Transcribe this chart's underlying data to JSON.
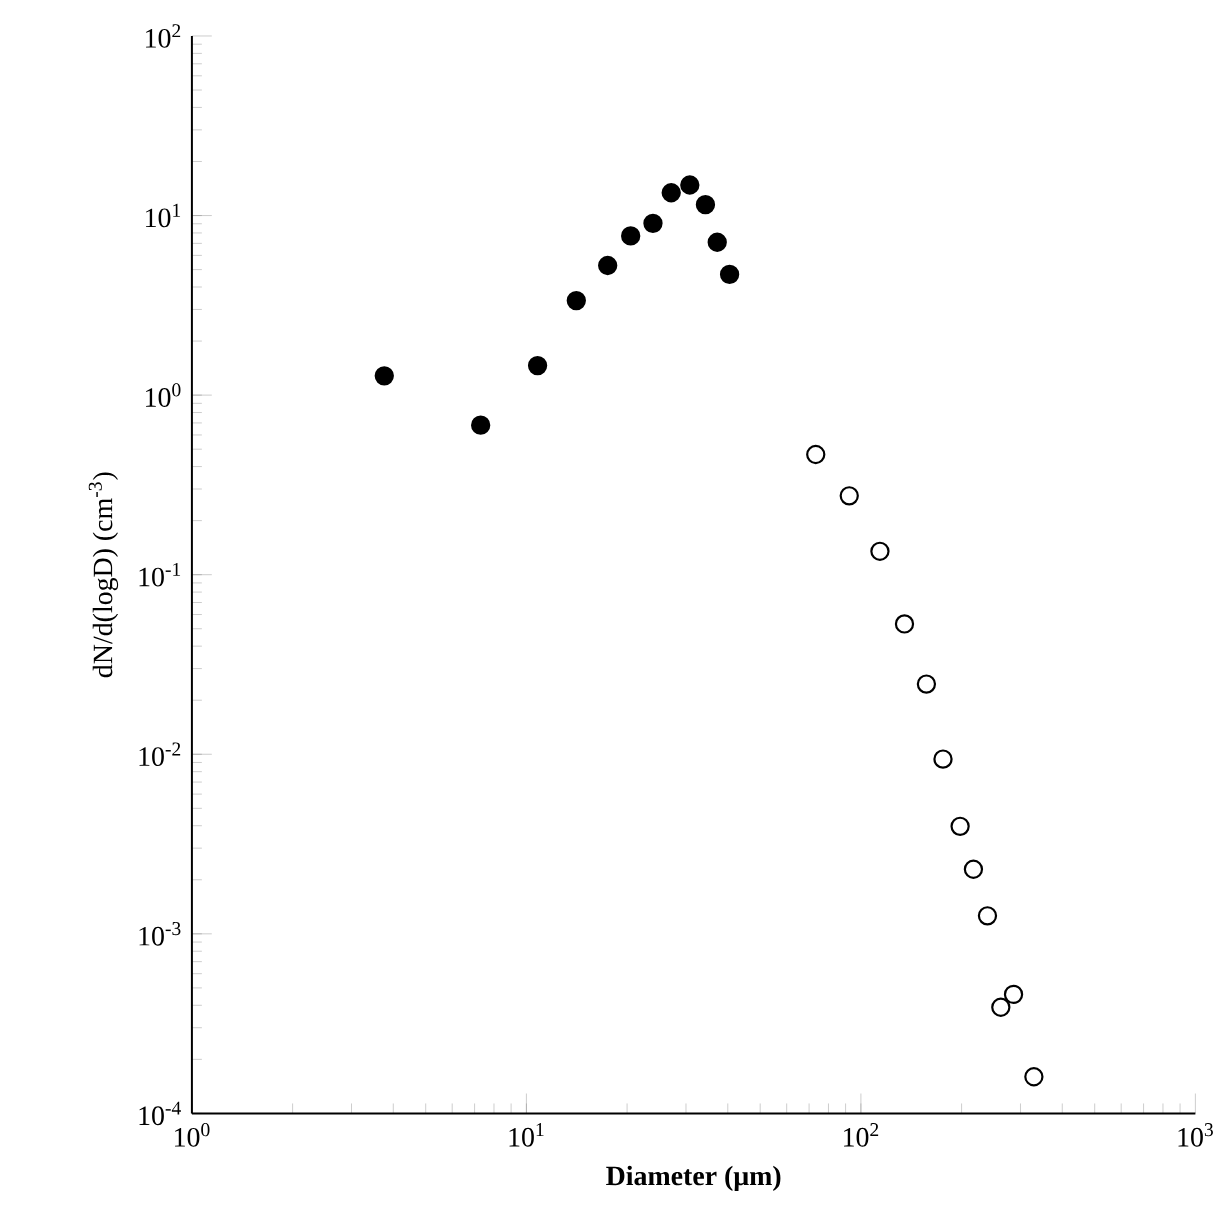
{
  "chart_data": {
    "type": "scatter",
    "xlabel": "Diameter (μm)",
    "ylabel": "dN/d(logD) (cm$^{-3}$)",
    "log": "xy",
    "grid": false,
    "xlim": [
      1,
      1000
    ],
    "ylim": [
      0.0001,
      100
    ],
    "xticks": [
      {
        "value": 1,
        "label": "10$^{0}$"
      },
      {
        "value": 10,
        "label": "10$^{1}$"
      },
      {
        "value": 100,
        "label": "10$^{2}$"
      },
      {
        "value": 1000,
        "label": "10$^{3}$"
      }
    ],
    "yticks": [
      {
        "value": 0.0001,
        "label": "10$^{-4}$"
      },
      {
        "value": 0.001,
        "label": "10$^{-3}$"
      },
      {
        "value": 0.01,
        "label": "10$^{-2}$"
      },
      {
        "value": 0.1,
        "label": "10$^{-1}$"
      },
      {
        "value": 1,
        "label": "10$^{0}$"
      },
      {
        "value": 10,
        "label": "10$^{1}$"
      },
      {
        "value": 100,
        "label": "10$^{2}$"
      }
    ],
    "series": [
      {
        "color": "#000000",
        "marker": "circle",
        "x": [
          3.76,
          7.3,
          10.8,
          14.1,
          17.5,
          20.5,
          23.9,
          27.1,
          30.8,
          34.3,
          37.2,
          40.5
        ],
        "values": [
          1.28,
          0.68,
          1.46,
          3.36,
          5.27,
          7.7,
          9.05,
          13.4,
          14.8,
          11.5,
          7.1,
          4.7
        ]
      },
      {
        "color": "#000000",
        "marker": "open circle",
        "x": [
          73.3,
          92.3,
          114,
          135,
          157,
          176,
          198,
          217,
          239,
          286,
          262,
          329
        ],
        "values": [
          0.467,
          0.275,
          0.135,
          0.0532,
          0.0246,
          0.0094,
          0.00397,
          0.00229,
          0.00126,
          0.00046,
          0.00039,
          0.00016
        ]
      }
    ]
  }
}
